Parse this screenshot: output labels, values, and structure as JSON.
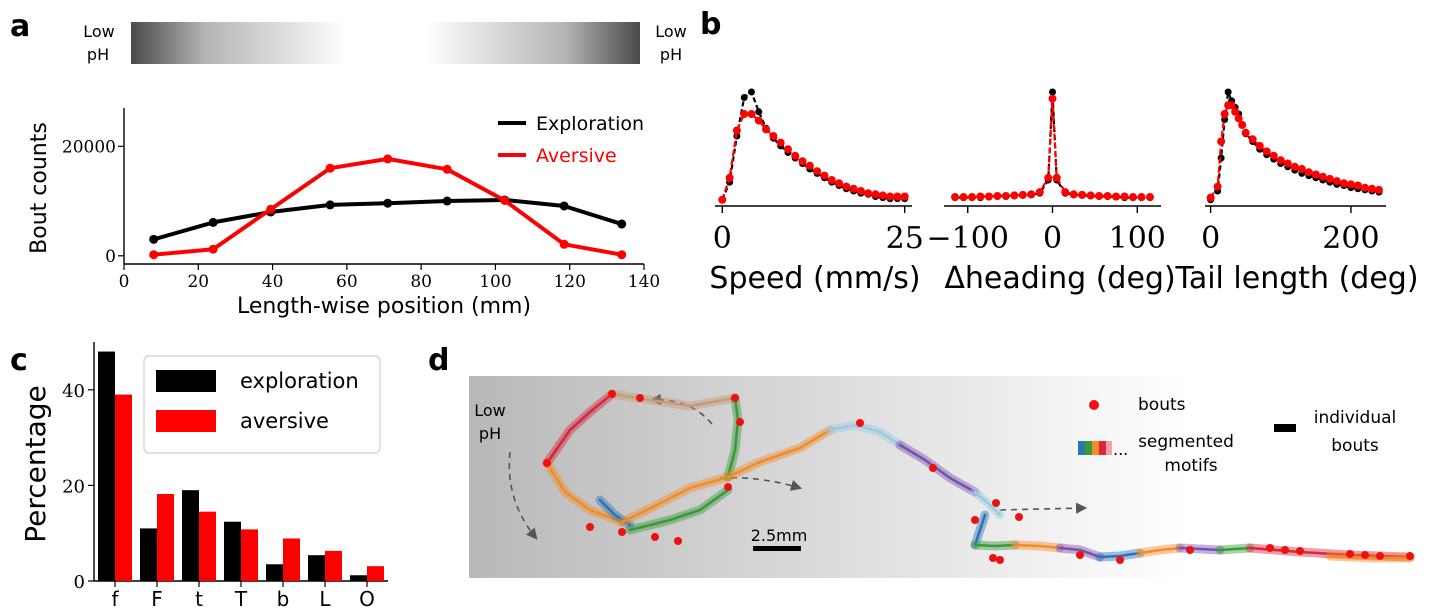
{
  "panel_letters": {
    "a": "a",
    "b": "b",
    "c": "c",
    "d": "d"
  },
  "gradient_bar": {
    "left_label": [
      "Low",
      "pH"
    ],
    "right_label": [
      "Low",
      "pH"
    ]
  },
  "chart_data": [
    {
      "panel": "a",
      "type": "line",
      "xlabel": "Length-wise position (mm)",
      "ylabel": "Bout counts",
      "xlim": [
        0,
        140
      ],
      "ylim": [
        -1500,
        27000
      ],
      "xticks": [
        "0",
        "20",
        "40",
        "60",
        "80",
        "100",
        "120",
        "140"
      ],
      "yticks": [
        "0",
        "20000"
      ],
      "x": [
        8,
        24,
        39.5,
        55.5,
        71,
        87,
        102.5,
        118.5,
        134
      ],
      "series": [
        {
          "name": "Exploration",
          "color": "#000000",
          "values": [
            3000,
            6100,
            8000,
            9300,
            9600,
            10000,
            10200,
            9100,
            5800
          ]
        },
        {
          "name": "Aversive",
          "color": "#ff0000",
          "values": [
            200,
            1200,
            8500,
            16000,
            17700,
            15800,
            10100,
            2100,
            200
          ]
        }
      ],
      "legend": "top-right"
    },
    {
      "panel": "b",
      "type": "line",
      "xlabel": "Speed (mm/s)",
      "xticks": [
        "0",
        "25"
      ],
      "xlim": [
        -1,
        26
      ],
      "x": [
        0,
        1,
        2,
        3,
        4,
        5,
        6,
        7,
        8,
        9,
        10,
        11,
        12,
        13,
        14,
        15,
        16,
        17,
        18,
        19,
        20,
        21,
        22,
        23,
        24,
        25
      ],
      "series": [
        {
          "name": "exploration",
          "color": "#000000",
          "values": [
            0.02,
            0.18,
            0.6,
            0.95,
            1.0,
            0.82,
            0.67,
            0.58,
            0.51,
            0.45,
            0.4,
            0.35,
            0.3,
            0.26,
            0.22,
            0.18,
            0.15,
            0.12,
            0.1,
            0.08,
            0.07,
            0.05,
            0.04,
            0.03,
            0.03,
            0.03
          ]
        },
        {
          "name": "aversive",
          "color": "#ff0000",
          "values": [
            0.02,
            0.22,
            0.65,
            0.8,
            0.8,
            0.74,
            0.66,
            0.6,
            0.54,
            0.48,
            0.42,
            0.37,
            0.33,
            0.28,
            0.24,
            0.2,
            0.17,
            0.14,
            0.12,
            0.1,
            0.08,
            0.07,
            0.06,
            0.05,
            0.05,
            0.05
          ]
        }
      ]
    },
    {
      "panel": "b",
      "type": "line",
      "xlabel": "Δheading (deg)",
      "xticks": [
        "−100",
        "0",
        "100"
      ],
      "xlim": [
        -128,
        128
      ],
      "x": [
        -115,
        -105,
        -95,
        -85,
        -75,
        -65,
        -55,
        -45,
        -35,
        -25,
        -15,
        -5,
        0,
        5,
        15,
        25,
        35,
        45,
        55,
        65,
        75,
        85,
        95,
        105,
        115
      ],
      "series": [
        {
          "name": "exploration",
          "color": "#000000",
          "values": [
            0.04,
            0.04,
            0.04,
            0.04,
            0.045,
            0.05,
            0.05,
            0.055,
            0.06,
            0.065,
            0.08,
            0.2,
            1.0,
            0.2,
            0.08,
            0.065,
            0.06,
            0.055,
            0.05,
            0.05,
            0.045,
            0.04,
            0.04,
            0.04,
            0.04
          ]
        },
        {
          "name": "aversive",
          "color": "#ff0000",
          "values": [
            0.045,
            0.045,
            0.045,
            0.05,
            0.05,
            0.055,
            0.055,
            0.06,
            0.065,
            0.07,
            0.09,
            0.22,
            0.94,
            0.22,
            0.09,
            0.07,
            0.065,
            0.06,
            0.055,
            0.055,
            0.05,
            0.05,
            0.045,
            0.045,
            0.045
          ]
        }
      ]
    },
    {
      "panel": "b",
      "type": "line",
      "xlabel": "Tail length (deg)",
      "xticks": [
        "0",
        "200"
      ],
      "xlim": [
        -8,
        250
      ],
      "x": [
        0,
        10,
        15,
        20,
        25,
        30,
        35,
        40,
        45,
        50,
        60,
        70,
        80,
        90,
        100,
        110,
        120,
        130,
        140,
        150,
        160,
        170,
        180,
        190,
        200,
        210,
        220,
        230,
        240
      ],
      "series": [
        {
          "name": "exploration",
          "color": "#000000",
          "values": [
            0.02,
            0.1,
            0.4,
            0.75,
            1.0,
            0.92,
            0.86,
            0.8,
            0.7,
            0.62,
            0.55,
            0.48,
            0.43,
            0.39,
            0.35,
            0.32,
            0.29,
            0.26,
            0.24,
            0.22,
            0.2,
            0.18,
            0.16,
            0.15,
            0.13,
            0.12,
            0.11,
            0.1,
            0.09
          ]
        },
        {
          "name": "aversive",
          "color": "#ff0000",
          "values": [
            0.04,
            0.14,
            0.55,
            0.8,
            0.88,
            0.88,
            0.82,
            0.76,
            0.7,
            0.63,
            0.57,
            0.51,
            0.46,
            0.42,
            0.38,
            0.35,
            0.32,
            0.3,
            0.27,
            0.25,
            0.23,
            0.21,
            0.19,
            0.17,
            0.16,
            0.15,
            0.13,
            0.12,
            0.11
          ]
        }
      ]
    },
    {
      "panel": "c",
      "type": "bar",
      "ylabel": "Percentage",
      "ylim": [
        0,
        50
      ],
      "yticks": [
        "0",
        "20",
        "40"
      ],
      "categories": [
        "f",
        "F",
        "t",
        "T",
        "b",
        "L",
        "O"
      ],
      "series": [
        {
          "name": "exploration",
          "color": "#000000",
          "values": [
            48,
            11,
            19,
            12.4,
            3.5,
            5.4,
            1.2
          ]
        },
        {
          "name": "aversive",
          "color": "#ff0000",
          "values": [
            39,
            18.2,
            14.5,
            10.8,
            8.9,
            6.3,
            3.1
          ]
        }
      ],
      "legend": "top-right"
    }
  ],
  "panel_d": {
    "low_ph_label": [
      "Low",
      "pH"
    ],
    "legend": {
      "bouts": "bouts",
      "segmented_motifs": [
        "segmented",
        "motifs"
      ],
      "ellipsis": "...",
      "individual_bouts": [
        "individual",
        "bouts"
      ]
    },
    "scale_bar": "2.5mm",
    "motif_colors": [
      "#d7263d",
      "#f28c28",
      "#3a9a3a",
      "#2a74b8",
      "#7a4fb0",
      "#c69b7b",
      "#9ec9e2"
    ]
  }
}
